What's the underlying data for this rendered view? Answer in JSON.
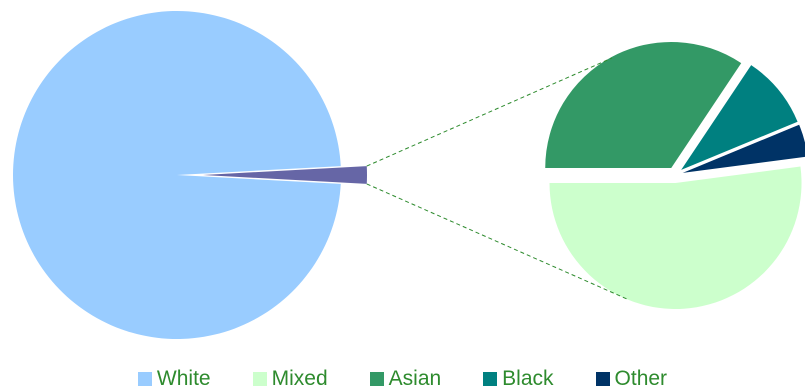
{
  "chart_data": {
    "type": "pie",
    "title": "",
    "categories": [
      "White",
      "Mixed",
      "Asian",
      "Black",
      "Other"
    ],
    "values": [
      98.0,
      0.9,
      0.6,
      0.16,
      0.07
    ],
    "colors": {
      "White": "#99ccff",
      "Mixed": "#ccffcc",
      "Asian": "#339966",
      "Black": "#008080",
      "Other": "#003366",
      "Remainder": "#6666a6",
      "connector": "#2e8b2e",
      "legend_text": "#2e8b2e"
    },
    "secondary_pie": {
      "categories": [
        "Mixed",
        "Asian",
        "Black",
        "Other"
      ],
      "share_of_remainder": [
        0.5,
        0.33,
        0.09,
        0.04
      ]
    },
    "legend": {
      "position": "bottom",
      "items": [
        {
          "label": "White",
          "color": "#99ccff"
        },
        {
          "label": "Mixed",
          "color": "#ccffcc"
        },
        {
          "label": "Asian",
          "color": "#339966"
        },
        {
          "label": "Black",
          "color": "#008080"
        },
        {
          "label": "Other",
          "color": "#003366"
        }
      ]
    }
  }
}
